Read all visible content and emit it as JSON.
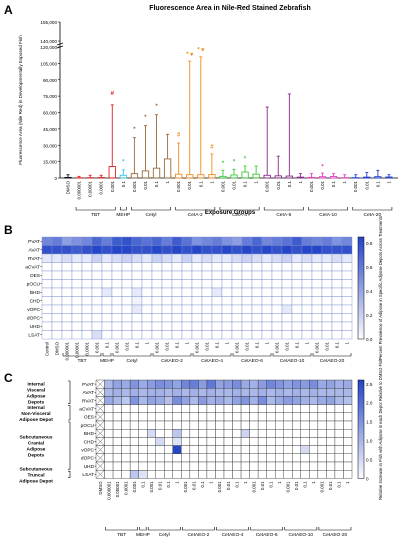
{
  "panels": [
    {
      "letter": "A"
    },
    {
      "letter": "B"
    },
    {
      "letter": "C"
    }
  ],
  "chart_data": [
    {
      "type": "bar",
      "panel": "A",
      "title": "Fluorescence Area in Nile-Red Stained Zebrafish",
      "xlabel": "Exposure Groups",
      "ylabel": "Fluorescence Area (Nile Red) in Developmentally Exposed Fish",
      "yticks": [
        "0",
        "15,000",
        "30,000",
        "45,000",
        "60,000",
        "75,000",
        "90,000",
        "105,000",
        "120,000",
        "140,000",
        "155,000"
      ],
      "axis_break": true,
      "categories": [
        "DMSO",
        "0.000001",
        "0.00001",
        "0.0001",
        "0.001",
        "0.1",
        "0.001",
        "0.01",
        "0.1",
        "1",
        "0.001",
        "0.01",
        "0.1",
        "1",
        "0.001",
        "0.01",
        "0.1",
        "1",
        "0.001",
        "0.01",
        "0.1",
        "1",
        "0.001",
        "0.01",
        "0.1",
        "1",
        "0.001",
        "0.01",
        "0.1",
        "1"
      ],
      "groups": [
        {
          "name": "TBT",
          "color": "#e02020",
          "start": 1,
          "count": 4
        },
        {
          "name": "MEHP",
          "color": "#30c8e0",
          "start": 5,
          "count": 1
        },
        {
          "name": "Cetyl",
          "color": "#9b6a3c",
          "start": 6,
          "count": 4
        },
        {
          "name": "CetA-2",
          "color": "#f08c1e",
          "start": 10,
          "count": 4
        },
        {
          "name": "CetA-4",
          "color": "#3cc83c",
          "start": 14,
          "count": 4
        },
        {
          "name": "CetA-6",
          "color": "#8a2a8a",
          "start": 18,
          "count": 4
        },
        {
          "name": "CetA-10",
          "color": "#e040c8",
          "start": 22,
          "count": 4
        },
        {
          "name": "CetA-20",
          "color": "#2040d0",
          "start": 26,
          "count": 4
        }
      ],
      "series": [
        {
          "values": [
            500,
            200,
            300,
            400,
            10500,
            2500,
            4000,
            6500,
            9000,
            17500,
            3500,
            3000,
            3000,
            3200,
            1500,
            2800,
            5500,
            3500,
            2500,
            2000,
            1800,
            800,
            600,
            1200,
            1400,
            300,
            300,
            800,
            1200,
            900
          ],
          "error_high": [
            3000,
            1500,
            2500,
            2500,
            67000,
            7500,
            37000,
            48000,
            58000,
            40000,
            32000,
            107000,
            111000,
            22000,
            7000,
            8000,
            11000,
            11000,
            65000,
            20000,
            77000,
            4000,
            4000,
            4500,
            4000,
            3000,
            3000,
            5000,
            7000,
            3000
          ],
          "markers": [
            {
              "index": 4,
              "symbol": "#",
              "value": 75000
            },
            {
              "index": 5,
              "symbol": "*",
              "value": 12500
            },
            {
              "index": 6,
              "symbol": "*",
              "value": 42000
            },
            {
              "index": 7,
              "symbol": "*",
              "value": 53000
            },
            {
              "index": 8,
              "symbol": "*",
              "value": 63000
            },
            {
              "index": 10,
              "symbol": "#",
              "value": 37000
            },
            {
              "index": 11,
              "symbol": "* ▾",
              "value": 111000
            },
            {
              "index": 12,
              "symbol": "* ▾",
              "value": 115000
            },
            {
              "index": 13,
              "symbol": "#",
              "value": 26000
            },
            {
              "index": 14,
              "symbol": "*",
              "value": 11000
            },
            {
              "index": 15,
              "symbol": "*",
              "value": 12500
            },
            {
              "index": 16,
              "symbol": "*",
              "value": 15000
            },
            {
              "index": 23,
              "symbol": "*",
              "value": 8000
            }
          ]
        }
      ]
    },
    {
      "type": "heatmap",
      "panel": "B",
      "colorbar_label": "Percent Prevalence of Adipose in Specific Adipose Depots Across Treatments",
      "colorbar_ticks": [
        "0.0",
        "0.2",
        "0.4",
        "0.6",
        "0.8"
      ],
      "ylabels": [
        "PVAT",
        "AVAT",
        "RVAT",
        "aCVAT",
        "OES",
        "pOCU",
        "BHD",
        "CHD",
        "vOPC",
        "dOPC",
        "UHD",
        "LSAT"
      ],
      "xlabels": [
        "Control",
        "DMSO",
        "0.000001",
        "0.00001",
        "0.0001",
        "0.001",
        "0.1",
        "0.001",
        "0.01",
        "0.1",
        "1",
        "0.001",
        "0.01",
        "0.1",
        "1",
        "0.001",
        "0.01",
        "0.1",
        "1",
        "0.001",
        "0.01",
        "0.1",
        "1",
        "0.001",
        "0.01",
        "0.1",
        "1",
        "0.001",
        "0.01",
        "0.1",
        "1"
      ],
      "groups": [
        {
          "name": "TBT",
          "start": 2,
          "count": 4
        },
        {
          "name": "MEHP",
          "start": 6,
          "count": 1
        },
        {
          "name": "Cetyl",
          "start": 7,
          "count": 4
        },
        {
          "name": "CetAEO-2",
          "start": 11,
          "count": 4
        },
        {
          "name": "CetAEO-4",
          "start": 15,
          "count": 4
        },
        {
          "name": "CetAEO-6",
          "start": 19,
          "count": 4
        },
        {
          "name": "CetAEO-10",
          "start": 23,
          "count": 4
        },
        {
          "name": "CetAEO-20",
          "start": 27,
          "count": 4
        }
      ],
      "values": [
        [
          0.55,
          0.6,
          0.45,
          0.5,
          0.55,
          0.7,
          0.6,
          0.75,
          0.8,
          0.7,
          0.65,
          0.7,
          0.6,
          0.75,
          0.65,
          0.5,
          0.55,
          0.6,
          0.5,
          0.45,
          0.6,
          0.7,
          0.55,
          0.6,
          0.65,
          0.75,
          0.6,
          0.55,
          0.6,
          0.5,
          0.55
        ],
        [
          0.8,
          0.8,
          0.8,
          0.75,
          0.8,
          0.85,
          0.8,
          0.85,
          0.85,
          0.8,
          0.8,
          0.85,
          0.8,
          0.85,
          0.8,
          0.85,
          0.8,
          0.8,
          0.85,
          0.8,
          0.85,
          0.8,
          0.85,
          0.8,
          0.85,
          0.8,
          0.85,
          0.85,
          0.8,
          0.8,
          0.8
        ],
        [
          0.1,
          0.1,
          0.15,
          0.1,
          0.1,
          0.2,
          0.1,
          0.15,
          0.2,
          0.15,
          0.1,
          0.2,
          0.15,
          0.1,
          0.2,
          0.1,
          0.15,
          0.1,
          0.1,
          0.15,
          0.2,
          0.15,
          0.1,
          0.15,
          0.2,
          0.1,
          0.15,
          0.1,
          0.1,
          0.15,
          0.1
        ],
        [
          0,
          0,
          0,
          0,
          0,
          0,
          0,
          0,
          0,
          0,
          0,
          0,
          0,
          0,
          0,
          0,
          0,
          0,
          0,
          0,
          0,
          0,
          0,
          0,
          0,
          0,
          0,
          0,
          0,
          0,
          0
        ],
        [
          0,
          0,
          0,
          0,
          0,
          0,
          0,
          0,
          0,
          0,
          0,
          0,
          0,
          0,
          0,
          0,
          0,
          0,
          0,
          0,
          0,
          0,
          0,
          0,
          0,
          0,
          0,
          0,
          0,
          0,
          0
        ],
        [
          0,
          0,
          0,
          0,
          0,
          0,
          0,
          0,
          0,
          0,
          0,
          0,
          0,
          0,
          0,
          0,
          0,
          0,
          0,
          0,
          0,
          0,
          0,
          0,
          0,
          0,
          0,
          0,
          0,
          0,
          0
        ],
        [
          0,
          0,
          0,
          0,
          0,
          0,
          0.1,
          0,
          0,
          0.1,
          0,
          0,
          0,
          0,
          0,
          0,
          0,
          0.1,
          0,
          0,
          0,
          0,
          0,
          0,
          0,
          0,
          0,
          0,
          0,
          0,
          0
        ],
        [
          0,
          0,
          0,
          0,
          0,
          0,
          0,
          0,
          0,
          0.05,
          0,
          0,
          0,
          0,
          0,
          0,
          0,
          0,
          0,
          0,
          0,
          0,
          0,
          0,
          0,
          0,
          0,
          0,
          0,
          0,
          0
        ],
        [
          0,
          0,
          0,
          0,
          0,
          0,
          0,
          0,
          0,
          0.1,
          0,
          0,
          0,
          0,
          0,
          0,
          0,
          0,
          0,
          0,
          0,
          0,
          0,
          0,
          0.1,
          0,
          0,
          0,
          0,
          0,
          0
        ],
        [
          0,
          0,
          0,
          0,
          0,
          0,
          0,
          0,
          0,
          0,
          0,
          0,
          0,
          0,
          0,
          0,
          0,
          0,
          0,
          0,
          0,
          0,
          0,
          0,
          0,
          0,
          0,
          0,
          0,
          0,
          0
        ],
        [
          0,
          0,
          0,
          0,
          0,
          0,
          0,
          0,
          0,
          0,
          0,
          0,
          0,
          0,
          0,
          0,
          0,
          0,
          0,
          0,
          0,
          0,
          0,
          0,
          0,
          0,
          0,
          0,
          0,
          0,
          0
        ],
        [
          0,
          0,
          0,
          0,
          0,
          0.15,
          0,
          0,
          0,
          0,
          0,
          0,
          0,
          0,
          0,
          0,
          0,
          0,
          0,
          0,
          0,
          0,
          0,
          0,
          0,
          0,
          0,
          0,
          0,
          0,
          0
        ]
      ],
      "vmin": 0,
      "vmax": 0.85
    },
    {
      "type": "heatmap",
      "panel": "C",
      "colorbar_label": "Relative Increase in Fish with Adipose in each Depot Relative to DMSO Fish",
      "colorbar_ticks": [
        "0",
        "0.5",
        "1.0",
        "1.5",
        "2.0",
        "2.5"
      ],
      "ylabels": [
        "PVAT",
        "AVAT",
        "RVAT",
        "aCVAT",
        "OES",
        "pOCU",
        "BHD",
        "CHD",
        "vOPC",
        "dOPC",
        "UHD",
        "LSAT"
      ],
      "row_group_labels": [
        {
          "name": "Internal Visceral Adipose Depots",
          "start": 0,
          "count": 3
        },
        {
          "name": "Internal Non-Visceral Adipose Depot",
          "start": 3,
          "count": 2
        },
        {
          "name": "Subcutaneous Cranial Adipose Depots",
          "start": 5,
          "count": 6
        },
        {
          "name": "Subcutaneous Truncal Adipose Depot",
          "start": 11,
          "count": 1
        }
      ],
      "xlabels": [
        "DMSO",
        "0.000001",
        "0.00001",
        "0.0001",
        "0.001",
        "0.1",
        "0.001",
        "0.01",
        "0.1",
        "1",
        "0.001",
        "0.01",
        "0.1",
        "1",
        "0.001",
        "0.01",
        "0.1",
        "1",
        "0.001",
        "0.01",
        "0.1",
        "1",
        "0.001",
        "0.01",
        "0.1",
        "1",
        "0.001",
        "0.01",
        "0.1",
        "1"
      ],
      "groups": [
        {
          "name": "TBT",
          "start": 1,
          "count": 4
        },
        {
          "name": "MEHP",
          "start": 5,
          "count": 1
        },
        {
          "name": "Cetyl",
          "start": 6,
          "count": 4
        },
        {
          "name": "CetAEO-2",
          "start": 10,
          "count": 4
        },
        {
          "name": "CetAEO-4",
          "start": 14,
          "count": 4
        },
        {
          "name": "CetAEO-6",
          "start": 18,
          "count": 4
        },
        {
          "name": "CetAEO-10",
          "start": 22,
          "count": 4
        },
        {
          "name": "CetAEO-20",
          "start": 26,
          "count": 4
        }
      ],
      "masked_column": 0,
      "values": [
        [
          null,
          1.0,
          1.3,
          1.2,
          1.5,
          1.2,
          1.4,
          1.6,
          1.5,
          1.3,
          1.7,
          1.8,
          1.4,
          1.9,
          1.3,
          1.4,
          1.6,
          1.2,
          1.1,
          1.4,
          1.7,
          1.5,
          1.3,
          1.5,
          1.4,
          1.6,
          1.2,
          1.3,
          1.1,
          1.2
        ],
        [
          null,
          1.0,
          1.1,
          1.0,
          1.1,
          1.0,
          1.1,
          1.1,
          1.0,
          1.1,
          1.0,
          1.1,
          1.0,
          1.1,
          1.0,
          1.0,
          1.1,
          1.0,
          1.0,
          1.1,
          1.0,
          1.1,
          1.0,
          1.1,
          1.0,
          1.1,
          1.0,
          1.0,
          1.0,
          1.0
        ],
        [
          null,
          1.2,
          1.0,
          0.8,
          1.5,
          1.0,
          1.3,
          1.2,
          0.9,
          1.6,
          1.3,
          1.0,
          1.4,
          1.1,
          1.2,
          1.0,
          1.3,
          1.5,
          1.1,
          1.6,
          1.0,
          1.2,
          1.4,
          1.3,
          1.1,
          1.0,
          1.2,
          1.3,
          1.0,
          0.9
        ],
        [
          null,
          0,
          0,
          0,
          0,
          0,
          0,
          0,
          0,
          0,
          0,
          0,
          0,
          0,
          0,
          0,
          0,
          0,
          0,
          0,
          0,
          0,
          0,
          0,
          0,
          0,
          0,
          0,
          0,
          0
        ],
        [
          null,
          0,
          0,
          0,
          0,
          0,
          0,
          0,
          0,
          0,
          0,
          0,
          0,
          0,
          0,
          0,
          0,
          0,
          0,
          0,
          0,
          0,
          0,
          0,
          0,
          0,
          0,
          0,
          0,
          0
        ],
        [
          null,
          0,
          0,
          0,
          0,
          0,
          0,
          0,
          0,
          0,
          0,
          0,
          0,
          0,
          0,
          0,
          0,
          0,
          0,
          0,
          0,
          0,
          0,
          0,
          0,
          0,
          0,
          0,
          0,
          0
        ],
        [
          null,
          0,
          0,
          0,
          0,
          0,
          0.5,
          0,
          0,
          0.8,
          0,
          0,
          0,
          0,
          0,
          0,
          0,
          0.6,
          0,
          0,
          0,
          0,
          0,
          0,
          0,
          0,
          0,
          0,
          0,
          0
        ],
        [
          null,
          0,
          0,
          0,
          0,
          0,
          0,
          0.5,
          0,
          0.4,
          0,
          0,
          0,
          0,
          0,
          0,
          0,
          0,
          0,
          0,
          0,
          0,
          0,
          0,
          0,
          0,
          0,
          0,
          0,
          0
        ],
        [
          null,
          0,
          0,
          0,
          0,
          0,
          0,
          0,
          0,
          2.6,
          0,
          0,
          0,
          0,
          0,
          0,
          0,
          0,
          0,
          0,
          0,
          0,
          0,
          0,
          0.5,
          0,
          0,
          0,
          0,
          0
        ],
        [
          null,
          0,
          0,
          0,
          0,
          0,
          0,
          0,
          0,
          0,
          0,
          0,
          0,
          0,
          0,
          0,
          0,
          0,
          0,
          0,
          0,
          0,
          0,
          0,
          0,
          0,
          0,
          0,
          0,
          0
        ],
        [
          null,
          0,
          0,
          0,
          0,
          0,
          0,
          0,
          0,
          0,
          0,
          0,
          0,
          0,
          0,
          0,
          0,
          0,
          0,
          0,
          0,
          0,
          0,
          0,
          0,
          0,
          0,
          0,
          0,
          0
        ],
        [
          null,
          0,
          0,
          0,
          0.8,
          0.4,
          0,
          0,
          0,
          0,
          0,
          0,
          0,
          0,
          0,
          0,
          0,
          0,
          0,
          0,
          0,
          0,
          0,
          0,
          0,
          0,
          0,
          0,
          0,
          0
        ]
      ],
      "vmin": 0,
      "vmax": 2.6
    }
  ]
}
